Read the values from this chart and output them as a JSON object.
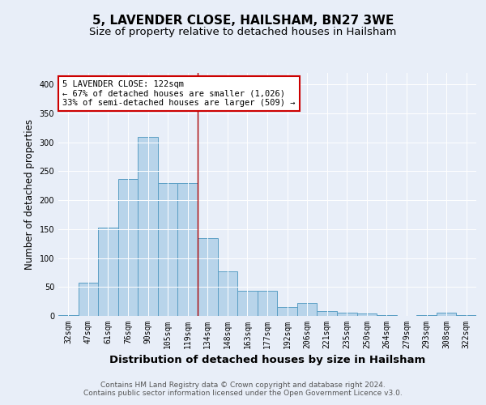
{
  "title": "5, LAVENDER CLOSE, HAILSHAM, BN27 3WE",
  "subtitle": "Size of property relative to detached houses in Hailsham",
  "xlabel": "Distribution of detached houses by size in Hailsham",
  "ylabel": "Number of detached properties",
  "categories": [
    "32sqm",
    "47sqm",
    "61sqm",
    "76sqm",
    "90sqm",
    "105sqm",
    "119sqm",
    "134sqm",
    "148sqm",
    "163sqm",
    "177sqm",
    "192sqm",
    "206sqm",
    "221sqm",
    "235sqm",
    "250sqm",
    "264sqm",
    "279sqm",
    "293sqm",
    "308sqm",
    "322sqm"
  ],
  "values": [
    2,
    57,
    152,
    237,
    309,
    229,
    229,
    134,
    77,
    43,
    44,
    15,
    22,
    8,
    6,
    4,
    2,
    0,
    2,
    5,
    2
  ],
  "bar_color": "#b8d4ea",
  "bar_edge_color": "#5a9ec4",
  "bar_edge_width": 0.7,
  "vline_x_index": 6.5,
  "vline_color": "#aa0000",
  "annotation_text": "5 LAVENDER CLOSE: 122sqm\n← 67% of detached houses are smaller (1,026)\n33% of semi-detached houses are larger (509) →",
  "annotation_box_edge_color": "#cc0000",
  "ylim": [
    0,
    420
  ],
  "yticks": [
    0,
    50,
    100,
    150,
    200,
    250,
    300,
    350,
    400
  ],
  "background_color": "#e8eef8",
  "plot_bg_color": "#e8eef8",
  "footer_line1": "Contains HM Land Registry data © Crown copyright and database right 2024.",
  "footer_line2": "Contains public sector information licensed under the Open Government Licence v3.0.",
  "title_fontsize": 11,
  "subtitle_fontsize": 9.5,
  "xlabel_fontsize": 9.5,
  "ylabel_fontsize": 8.5,
  "tick_fontsize": 7,
  "footer_fontsize": 6.5,
  "annot_fontsize": 7.5
}
